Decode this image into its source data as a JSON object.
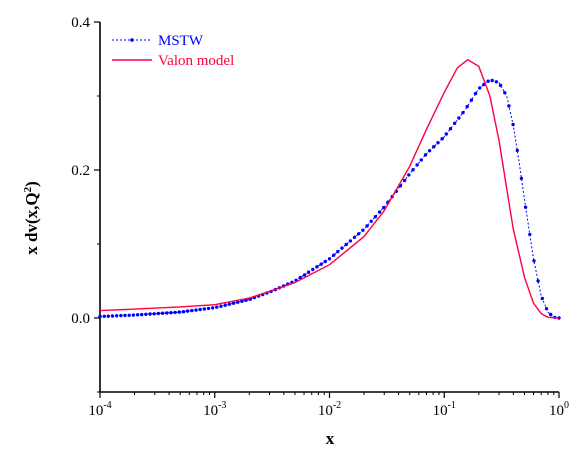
{
  "chart_data": {
    "type": "line",
    "xlabel": "x",
    "ylabel_base": "x dv(x,Q",
    "ylabel_sup": "2",
    "ylabel_close": ")",
    "xscale": "log",
    "xlim": [
      0.0001,
      1
    ],
    "ylim": [
      -0.1,
      0.4
    ],
    "x_ticks": [
      {
        "base": "10",
        "exp": "-4",
        "value": 0.0001
      },
      {
        "base": "10",
        "exp": "-3",
        "value": 0.001
      },
      {
        "base": "10",
        "exp": "-2",
        "value": 0.01
      },
      {
        "base": "10",
        "exp": "-1",
        "value": 0.1
      },
      {
        "base": "10",
        "exp": "0",
        "value": 1
      }
    ],
    "y_ticks": [
      {
        "label": "0.0",
        "value": 0.0
      },
      {
        "label": "0.2",
        "value": 0.2
      },
      {
        "label": "0.4",
        "value": 0.4
      }
    ],
    "legend_placement": "top-left",
    "series": [
      {
        "name": "MSTW",
        "color": "#0000ff",
        "style": "dotted-line-with-markers",
        "points": [
          [
            0.0001,
            0.002
          ],
          [
            0.0002,
            0.004
          ],
          [
            0.0005,
            0.008
          ],
          [
            0.001,
            0.014
          ],
          [
            0.002,
            0.025
          ],
          [
            0.003,
            0.035
          ],
          [
            0.005,
            0.05
          ],
          [
            0.01,
            0.08
          ],
          [
            0.02,
            0.12
          ],
          [
            0.03,
            0.15
          ],
          [
            0.05,
            0.195
          ],
          [
            0.07,
            0.222
          ],
          [
            0.1,
            0.245
          ],
          [
            0.15,
            0.28
          ],
          [
            0.2,
            0.31
          ],
          [
            0.25,
            0.322
          ],
          [
            0.3,
            0.318
          ],
          [
            0.35,
            0.3
          ],
          [
            0.4,
            0.26
          ],
          [
            0.45,
            0.21
          ],
          [
            0.5,
            0.16
          ],
          [
            0.6,
            0.08
          ],
          [
            0.7,
            0.03
          ],
          [
            0.8,
            0.008
          ],
          [
            0.9,
            0.001
          ],
          [
            1.0,
            0.0
          ]
        ]
      },
      {
        "name": "Valon model",
        "color": "#ff0040",
        "style": "solid-line",
        "points": [
          [
            0.0001,
            0.01
          ],
          [
            0.0002,
            0.012
          ],
          [
            0.0005,
            0.015
          ],
          [
            0.001,
            0.018
          ],
          [
            0.002,
            0.027
          ],
          [
            0.003,
            0.036
          ],
          [
            0.005,
            0.048
          ],
          [
            0.01,
            0.072
          ],
          [
            0.02,
            0.11
          ],
          [
            0.03,
            0.145
          ],
          [
            0.05,
            0.205
          ],
          [
            0.07,
            0.255
          ],
          [
            0.1,
            0.305
          ],
          [
            0.13,
            0.338
          ],
          [
            0.16,
            0.349
          ],
          [
            0.2,
            0.34
          ],
          [
            0.25,
            0.3
          ],
          [
            0.3,
            0.24
          ],
          [
            0.35,
            0.175
          ],
          [
            0.4,
            0.12
          ],
          [
            0.5,
            0.055
          ],
          [
            0.6,
            0.02
          ],
          [
            0.7,
            0.006
          ],
          [
            0.8,
            0.001
          ],
          [
            1.0,
            0.0
          ]
        ]
      }
    ]
  }
}
